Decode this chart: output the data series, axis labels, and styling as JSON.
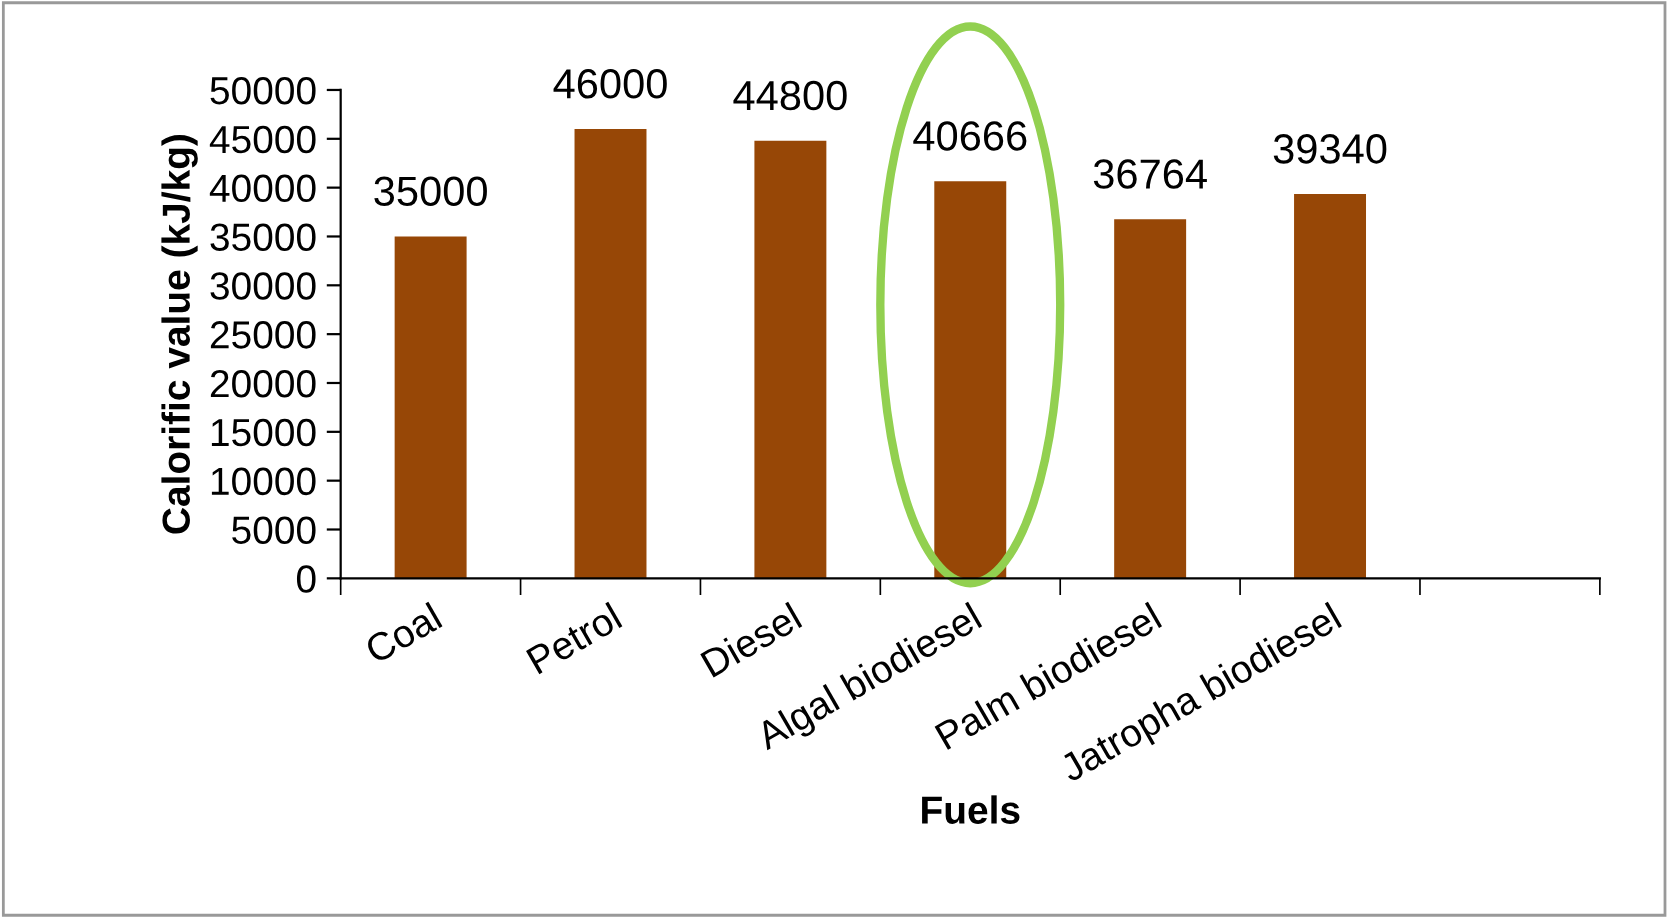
{
  "chart_data": {
    "type": "bar",
    "xlabel": "Fuels",
    "ylabel": "Calorific value (kJ/kg)",
    "categories": [
      "Coal",
      "Petrol",
      "Diesel",
      "Algal biodiesel",
      "Palm biodiesel",
      "Jatropha biodiesel"
    ],
    "values": [
      35000,
      46000,
      44800,
      40666,
      36764,
      39340
    ],
    "color": "#974706",
    "ylim": [
      0,
      50000
    ],
    "yticks": [
      0,
      5000,
      10000,
      15000,
      20000,
      25000,
      30000,
      35000,
      40000,
      45000,
      50000
    ],
    "data_labels": true,
    "grid": false,
    "legend": false
  }
}
